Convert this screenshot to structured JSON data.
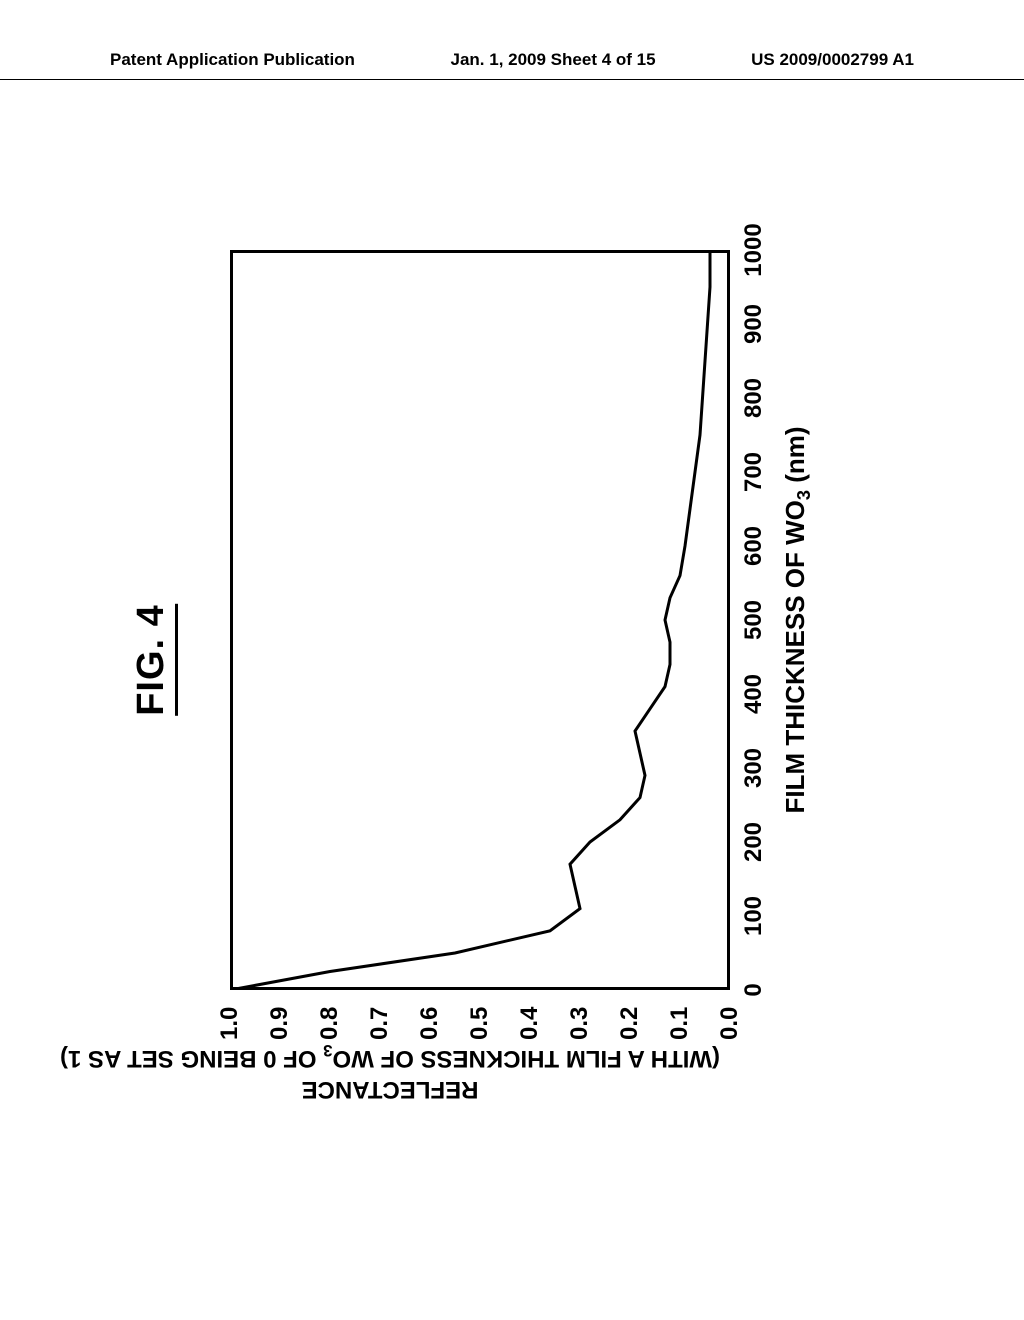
{
  "header": {
    "left": "Patent Application Publication",
    "center": "Jan. 1, 2009  Sheet 4 of 15",
    "right": "US 2009/0002799 A1"
  },
  "figure": {
    "title": "FIG. 4",
    "chart": {
      "type": "line",
      "xlim": [
        0,
        1000
      ],
      "ylim": [
        0.0,
        1.0
      ],
      "xticks": [
        0,
        100,
        200,
        300,
        400,
        500,
        600,
        700,
        800,
        900,
        1000
      ],
      "yticks": [
        0.0,
        0.1,
        0.2,
        0.3,
        0.4,
        0.5,
        0.6,
        0.7,
        0.8,
        0.9,
        1.0
      ],
      "ytick_labels": [
        "0.0",
        "0.1",
        "0.2",
        "0.3",
        "0.4",
        "0.5",
        "0.6",
        "0.7",
        "0.8",
        "0.9",
        "1.0"
      ],
      "xtick_labels": [
        "0",
        "100",
        "200",
        "300",
        "400",
        "500",
        "600",
        "700",
        "800",
        "900",
        "1000"
      ],
      "xlabel_html": "FILM THICKNESS OF WO<span class='sub'>3</span> (nm)",
      "ylabel_line1": "REFLECTANCE",
      "ylabel_line2_html": "(WITH A FILM THICKNESS OF WO<span class='sub'>3</span> OF 0 BEING SET AS 1)",
      "line_color": "#000000",
      "line_width": 3,
      "background_color": "#ffffff",
      "border_color": "#000000",
      "border_width": 3,
      "tick_fontsize": 24,
      "label_fontsize": 26,
      "title_fontsize": 38,
      "data": [
        [
          0,
          1.0
        ],
        [
          25,
          0.8
        ],
        [
          50,
          0.55
        ],
        [
          80,
          0.36
        ],
        [
          110,
          0.3
        ],
        [
          140,
          0.31
        ],
        [
          170,
          0.32
        ],
        [
          200,
          0.28
        ],
        [
          230,
          0.22
        ],
        [
          260,
          0.18
        ],
        [
          290,
          0.17
        ],
        [
          320,
          0.18
        ],
        [
          350,
          0.19
        ],
        [
          380,
          0.16
        ],
        [
          410,
          0.13
        ],
        [
          440,
          0.12
        ],
        [
          470,
          0.12
        ],
        [
          500,
          0.13
        ],
        [
          530,
          0.12
        ],
        [
          560,
          0.1
        ],
        [
          600,
          0.09
        ],
        [
          650,
          0.08
        ],
        [
          700,
          0.07
        ],
        [
          750,
          0.06
        ],
        [
          800,
          0.055
        ],
        [
          850,
          0.05
        ],
        [
          900,
          0.045
        ],
        [
          950,
          0.04
        ],
        [
          1000,
          0.04
        ]
      ]
    }
  }
}
